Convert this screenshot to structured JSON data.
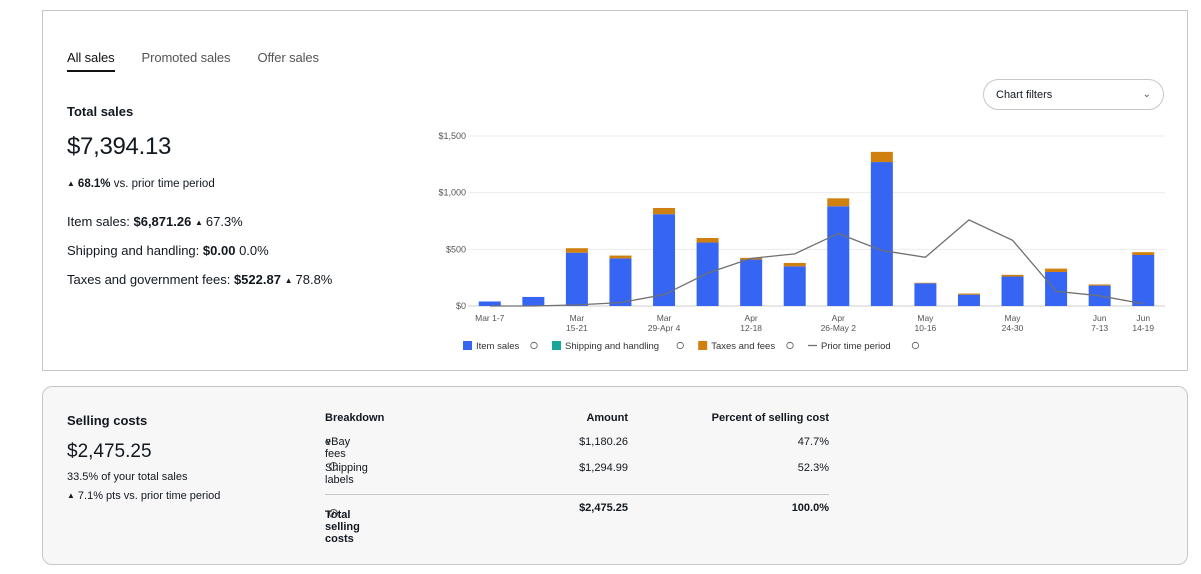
{
  "tabs": [
    "All sales",
    "Promoted sales",
    "Offer sales"
  ],
  "summary": {
    "label": "Total sales",
    "value": "$7,394.13",
    "delta_pct": "68.1%",
    "delta_text": "vs. prior time period",
    "item_sales_label": "Item sales:",
    "item_sales_value": "$6,871.26",
    "item_sales_delta": "67.3%",
    "shipping_label": "Shipping and handling:",
    "shipping_value": "$0.00",
    "shipping_delta": "0.0%",
    "taxes_label": "Taxes and government fees:",
    "taxes_value": "$522.87",
    "taxes_delta": "78.8%"
  },
  "filter": {
    "label": "Chart filters",
    "icon": "chevron-down-icon"
  },
  "chart_data": {
    "type": "bar",
    "stacked": true,
    "x_tick_labels": [
      [
        "Mar 1-7"
      ],
      [
        ""
      ],
      [
        "Mar",
        "15-21"
      ],
      [
        ""
      ],
      [
        "Mar",
        "29-Apr 4"
      ],
      [
        ""
      ],
      [
        "Apr",
        "12-18"
      ],
      [
        ""
      ],
      [
        "Apr",
        "26-May 2"
      ],
      [
        ""
      ],
      [
        "May",
        "10-16"
      ],
      [
        ""
      ],
      [
        "May",
        "24-30"
      ],
      [
        ""
      ],
      [
        "Jun",
        "7-13"
      ],
      [
        "Jun",
        "14-19"
      ]
    ],
    "y_ticks": [
      "$0",
      "$500",
      "$1,000",
      "$1,500"
    ],
    "ylim": [
      0,
      1500
    ],
    "grid": true,
    "legend_position": "bottom",
    "series": [
      {
        "name": "Item sales",
        "type": "bar",
        "color": "#3665f3",
        "values": [
          40,
          80,
          470,
          420,
          810,
          560,
          410,
          350,
          880,
          1270,
          200,
          100,
          260,
          300,
          180,
          450
        ]
      },
      {
        "name": "Shipping and handling",
        "type": "bar",
        "color": "#1aa59a",
        "values": [
          0,
          0,
          0,
          0,
          0,
          0,
          0,
          0,
          0,
          0,
          0,
          0,
          0,
          0,
          0,
          0
        ]
      },
      {
        "name": "Taxes and fees",
        "type": "bar",
        "color": "#d0800f",
        "values": [
          0,
          0,
          40,
          25,
          55,
          40,
          15,
          30,
          70,
          90,
          5,
          10,
          15,
          30,
          10,
          25
        ]
      },
      {
        "name": "Prior time period",
        "type": "line",
        "color": "#707070",
        "values": [
          0,
          0,
          10,
          30,
          100,
          290,
          420,
          460,
          640,
          490,
          430,
          760,
          580,
          130,
          90,
          20
        ]
      }
    ]
  },
  "selling_costs": {
    "label": "Selling costs",
    "value": "$2,475.25",
    "pct_text": "33.5% of your total sales",
    "delta_text": "7.1% pts  vs. prior time period"
  },
  "breakdown": {
    "headers": [
      "Breakdown",
      "Amount",
      "Percent of selling cost"
    ],
    "rows": [
      {
        "label": "eBay fees",
        "amount": "$1,180.26",
        "percent": "47.7%"
      },
      {
        "label": "Shipping labels",
        "amount": "$1,294.99",
        "percent": "52.3%"
      }
    ],
    "total": {
      "label": "Total selling costs",
      "amount": "$2,475.25",
      "percent": "100.0%"
    }
  }
}
